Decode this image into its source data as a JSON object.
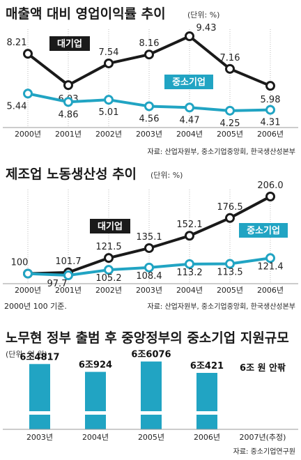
{
  "colors": {
    "large": "#1a1a1a",
    "small": "#21a4c3",
    "bar": "#21a4c3",
    "grid": "#999999"
  },
  "chart_data": [
    {
      "type": "line",
      "title": "매출액 대비 영업이익률 추이",
      "unit": "(단위: %)",
      "x": [
        "2000년",
        "2001년",
        "2002년",
        "2003년",
        "2004년",
        "2005년",
        "2006년"
      ],
      "series": [
        {
          "name": "대기업",
          "values": [
            8.21,
            6.03,
            7.54,
            8.16,
            9.43,
            7.16,
            5.98
          ],
          "labels": [
            "8.21",
            "6.03",
            "7.54",
            "8.16",
            "9.43",
            "7.16",
            "5.98"
          ]
        },
        {
          "name": "중소기업",
          "values": [
            5.44,
            4.86,
            5.01,
            4.56,
            4.47,
            4.25,
            4.31
          ],
          "labels": [
            "5.44",
            "4.86",
            "5.01",
            "4.56",
            "4.47",
            "4.25",
            "4.31"
          ]
        }
      ],
      "source": "자료: 산업자원부, 중소기업중앙회, 한국생산성본부"
    },
    {
      "type": "line",
      "title": "제조업 노동생산성 추이",
      "unit": "(단위: %)",
      "x": [
        "2000년",
        "2001년",
        "2002년",
        "2003년",
        "2004년",
        "2005년",
        "2006년"
      ],
      "series": [
        {
          "name": "대기업",
          "values": [
            100,
            101.7,
            121.5,
            135.1,
            152.1,
            176.5,
            206.0
          ],
          "labels": [
            "100",
            "101.7",
            "121.5",
            "135.1",
            "152.1",
            "176.5",
            "206.0"
          ]
        },
        {
          "name": "중소기업",
          "values": [
            100,
            97.7,
            105.2,
            108.4,
            113.2,
            113.5,
            121.4
          ],
          "labels": [
            "",
            "97.7",
            "105.2",
            "108.4",
            "113.2",
            "113.5",
            "121.4"
          ]
        }
      ],
      "note": "2000년 100 기준.",
      "source": "자료: 산업자원부, 중소기업중앙회, 한국생산성본부"
    },
    {
      "type": "bar",
      "title": "노무현 정부 출범 후 중앙정부의 중소기업 지원규모",
      "unit": "(단위: 억 원)",
      "categories": [
        "2003년",
        "2004년",
        "2005년",
        "2006년",
        "2007년(추정)"
      ],
      "values": [
        64817,
        60924,
        66076,
        60421,
        60000
      ],
      "labels": [
        "6조4817",
        "6조924",
        "6조6076",
        "6조421",
        "6조 원 안팎"
      ],
      "source": "자료: 중소기업연구원"
    }
  ]
}
